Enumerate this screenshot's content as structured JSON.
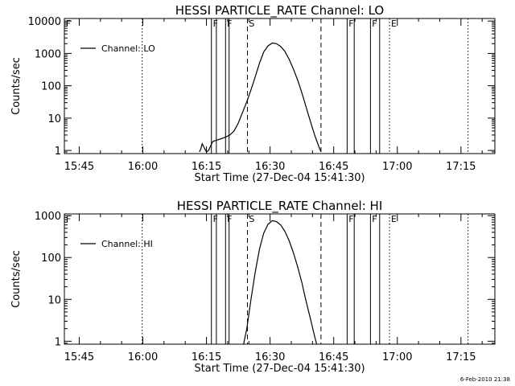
{
  "footer_date": "6-Feb-2010 21:38",
  "chart_data": [
    {
      "type": "line",
      "title": "HESSI PARTICLE_RATE Channel: LO",
      "xlabel": "Start Time (27-Dec-04 15:41:30)",
      "ylabel": "Counts/sec",
      "yscale": "log",
      "xlim": [
        "15:41:30",
        "17:23:00"
      ],
      "ylim": [
        0.8,
        12000
      ],
      "xtick_labels": [
        "15:45",
        "16:00",
        "16:15",
        "16:30",
        "16:45",
        "17:00",
        "17:15"
      ],
      "ytick_labels": [
        "1",
        "10",
        "100",
        "1000",
        "10000"
      ],
      "legend": {
        "position": "top-left",
        "entries": [
          "Channel: LO"
        ]
      },
      "series": [
        {
          "name": "Channel: LO",
          "x": [
            "16:13:20",
            "16:13:40",
            "16:14:00",
            "16:14:30",
            "16:15:00",
            "16:15:30",
            "16:16:00",
            "16:16:30",
            "16:17:30",
            "16:18:30",
            "16:19:30",
            "16:20:30",
            "16:21:30",
            "16:22:30",
            "16:23:30",
            "16:24:30",
            "16:25:30",
            "16:26:30",
            "16:27:30",
            "16:28:30",
            "16:29:30",
            "16:30:30",
            "16:31:30",
            "16:32:30",
            "16:33:30",
            "16:34:30",
            "16:35:30",
            "16:36:30",
            "16:37:30",
            "16:38:30",
            "16:39:30",
            "16:40:30",
            "16:41:30",
            "16:42:00"
          ],
          "y": [
            0.9,
            1.1,
            1.6,
            1.2,
            0.9,
            1.0,
            1.4,
            1.9,
            2.1,
            2.3,
            2.6,
            3.0,
            4.0,
            7.0,
            15,
            32,
            75,
            190,
            500,
            1100,
            1700,
            2100,
            2000,
            1650,
            1150,
            650,
            330,
            150,
            60,
            22,
            8,
            3,
            1.3,
            0.9
          ]
        }
      ],
      "markers": [
        {
          "type": "dotted",
          "time": "15:59:50"
        },
        {
          "type": "solid",
          "time": "16:16:10"
        },
        {
          "type": "solid",
          "time": "16:17:20"
        },
        {
          "type": "solid",
          "time": "16:19:30"
        },
        {
          "type": "solid",
          "time": "16:20:20"
        },
        {
          "type": "dashed",
          "time": "16:24:40"
        },
        {
          "type": "dashed",
          "time": "16:42:00"
        },
        {
          "type": "solid",
          "time": "16:48:10"
        },
        {
          "type": "solid",
          "time": "16:49:50"
        },
        {
          "type": "solid",
          "time": "16:53:40"
        },
        {
          "type": "solid",
          "time": "16:55:50"
        },
        {
          "type": "dotted",
          "time": "16:58:10"
        },
        {
          "type": "dotted",
          "time": "17:16:40"
        }
      ],
      "marker_labels": [
        {
          "text": "F",
          "time": "15:41:40"
        },
        {
          "text": "F",
          "time": "16:16:20"
        },
        {
          "text": "F",
          "time": "16:19:40"
        },
        {
          "text": "S",
          "time": "16:24:50"
        },
        {
          "text": "F",
          "time": "16:48:20"
        },
        {
          "text": "F",
          "time": "16:53:50"
        },
        {
          "text": "E",
          "time": "16:58:20"
        }
      ]
    },
    {
      "type": "line",
      "title": "HESSI PARTICLE_RATE Channel: HI",
      "xlabel": "Start Time (27-Dec-04 15:41:30)",
      "ylabel": "Counts/sec",
      "yscale": "log",
      "xlim": [
        "15:41:30",
        "17:23:00"
      ],
      "ylim": [
        0.85,
        1100
      ],
      "xtick_labels": [
        "15:45",
        "16:00",
        "16:15",
        "16:30",
        "16:45",
        "17:00",
        "17:15"
      ],
      "ytick_labels": [
        "1",
        "10",
        "100",
        "1000"
      ],
      "legend": {
        "position": "top-left",
        "entries": [
          "Channel: HI"
        ]
      },
      "series": [
        {
          "name": "Channel: HI",
          "x": [
            "16:23:45",
            "16:24:30",
            "16:25:30",
            "16:26:30",
            "16:27:30",
            "16:28:30",
            "16:29:30",
            "16:30:30",
            "16:31:30",
            "16:32:30",
            "16:33:30",
            "16:34:30",
            "16:35:30",
            "16:36:30",
            "16:37:30",
            "16:38:30",
            "16:39:30",
            "16:40:30",
            "16:41:00"
          ],
          "y": [
            0.85,
            2.0,
            10,
            45,
            160,
            380,
            620,
            760,
            720,
            600,
            420,
            250,
            130,
            60,
            25,
            9,
            3.5,
            1.3,
            0.85
          ]
        }
      ],
      "markers": [
        {
          "type": "dotted",
          "time": "15:59:50"
        },
        {
          "type": "solid",
          "time": "16:16:10"
        },
        {
          "type": "solid",
          "time": "16:17:20"
        },
        {
          "type": "solid",
          "time": "16:19:30"
        },
        {
          "type": "solid",
          "time": "16:20:20"
        },
        {
          "type": "dashed",
          "time": "16:24:40"
        },
        {
          "type": "dashed",
          "time": "16:42:00"
        },
        {
          "type": "solid",
          "time": "16:48:10"
        },
        {
          "type": "solid",
          "time": "16:49:50"
        },
        {
          "type": "solid",
          "time": "16:53:40"
        },
        {
          "type": "solid",
          "time": "16:55:50"
        },
        {
          "type": "dotted",
          "time": "16:58:10"
        },
        {
          "type": "dotted",
          "time": "17:16:40"
        }
      ],
      "marker_labels": [
        {
          "text": "F",
          "time": "15:41:40"
        },
        {
          "text": "F",
          "time": "16:16:20"
        },
        {
          "text": "F",
          "time": "16:19:40"
        },
        {
          "text": "S",
          "time": "16:24:50"
        },
        {
          "text": "F",
          "time": "16:48:20"
        },
        {
          "text": "F",
          "time": "16:53:50"
        },
        {
          "text": "E",
          "time": "16:58:20"
        }
      ]
    }
  ]
}
